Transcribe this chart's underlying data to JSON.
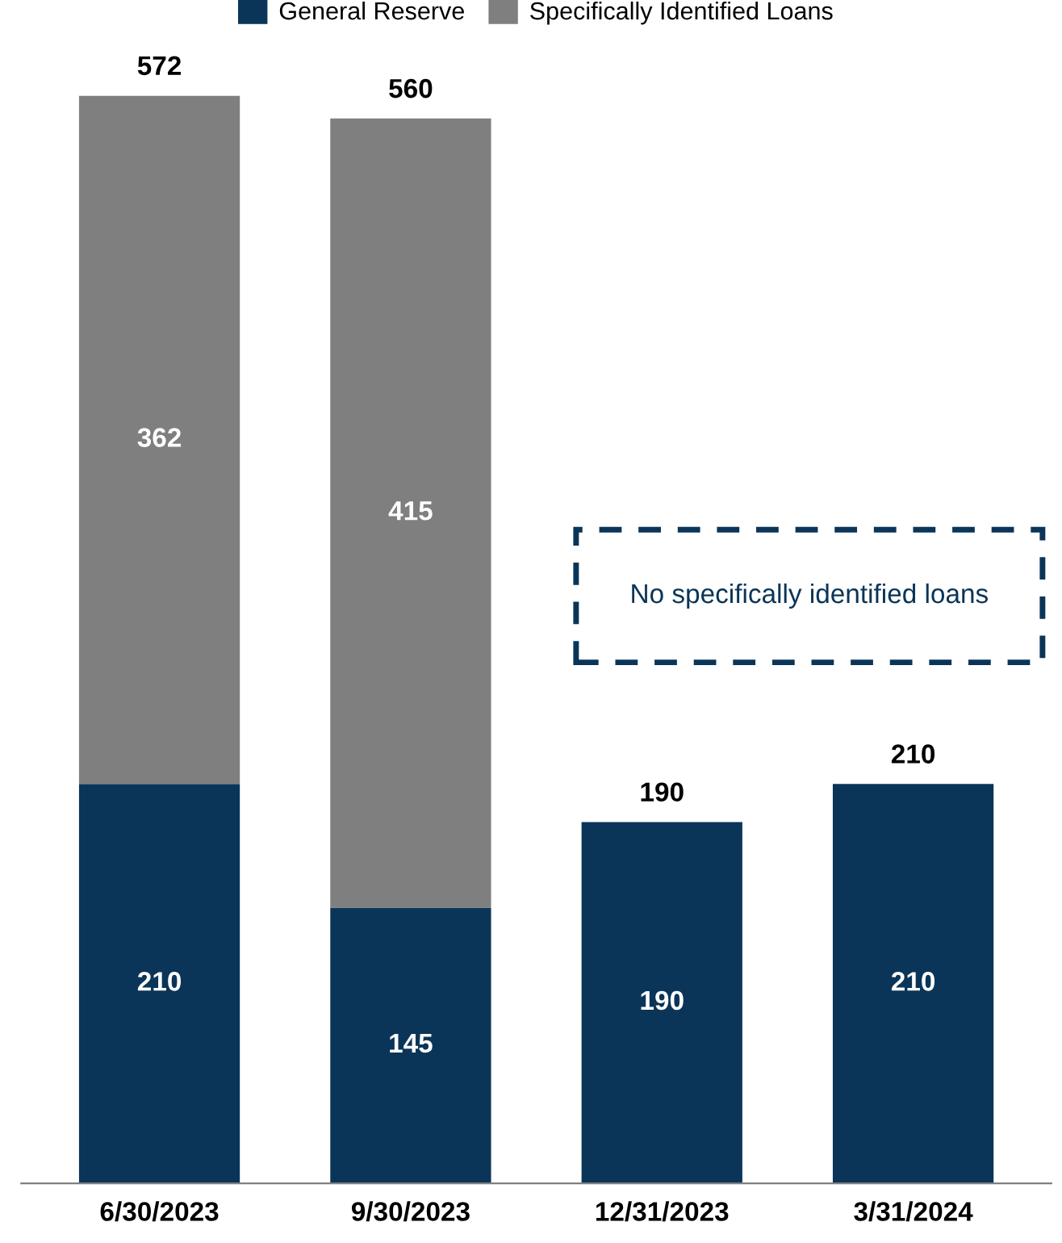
{
  "chart_data": {
    "type": "bar",
    "stacked": true,
    "categories": [
      "6/30/2023",
      "9/30/2023",
      "12/31/2023",
      "3/31/2024"
    ],
    "series": [
      {
        "name": "General Reserve",
        "color": "#0b3558",
        "values": [
          210,
          145,
          190,
          210
        ]
      },
      {
        "name": "Specifically Identified Loans",
        "color": "#7f7f7f",
        "values": [
          362,
          415,
          null,
          null
        ]
      }
    ],
    "data_labels": true,
    "totals": [
      "572",
      "560",
      "190",
      "210"
    ],
    "annotations": [
      "No specifically identified loans"
    ],
    "legend": "top",
    "tick_labels": "x",
    "grid": false
  }
}
